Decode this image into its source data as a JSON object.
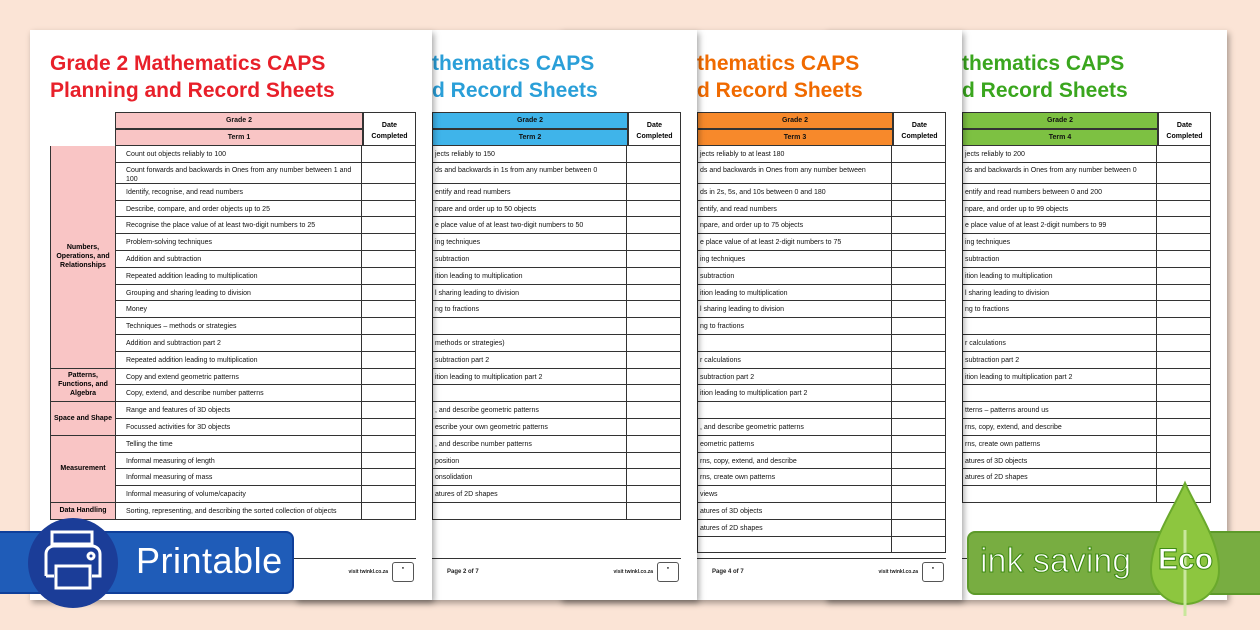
{
  "colors": {
    "background": "#fbe4d6",
    "printable_badge": "#1f5cb8",
    "eco_badge": "#78ad41"
  },
  "pages": [
    {
      "title": [
        "Grade 2 Mathematics CAPS",
        "Planning and Record Sheets"
      ],
      "title_color": "#e8202a",
      "header_color": "#f9c5c5",
      "grade": "Grade 2",
      "term": "Term 1",
      "date_header": "Date Completed",
      "page_label": "",
      "visit": "visit twinkl.co.za",
      "categories": [
        {
          "label": "Numbers, Operations, and Relationships",
          "rows": 13
        },
        {
          "label": "Patterns, Functions, and Algebra",
          "rows": 2
        },
        {
          "label": "Space and Shape",
          "rows": 2
        },
        {
          "label": "Measurement",
          "rows": 4
        },
        {
          "label": "Data Handling",
          "rows": 1
        }
      ],
      "rows": [
        "Count out objects reliably to 100",
        "Count forwards and backwards in Ones from any number between 1 and 100",
        "Identify, recognise, and read numbers",
        "Describe, compare, and order objects up to 25",
        "Recognise the place value of at least two-digit numbers to 25",
        "Problem-solving techniques",
        "Addition and subtraction",
        "Repeated addition leading to multiplication",
        "Grouping and sharing leading to division",
        "Money",
        "Techniques – methods or strategies",
        "Addition and subtraction part 2",
        "Repeated addition leading to multiplication",
        "Copy and extend geometric patterns",
        "Copy, extend, and describe number patterns",
        "Range and features of 3D objects",
        "Focussed activities for 3D objects",
        "Telling the time",
        "Informal measuring of length",
        "Informal measuring of mass",
        "Informal measuring of volume/capacity",
        "Sorting, representing, and describing the sorted collection of objects"
      ]
    },
    {
      "title": [
        "thematics CAPS",
        "d Record Sheets"
      ],
      "title_color": "#2a9fd8",
      "header_color": "#3fb4ea",
      "grade": "Grade 2",
      "term": "Term 2",
      "date_header": "Date Completed",
      "page_label": "Page 2 of 7",
      "visit": "visit twinkl.co.za",
      "rows": [
        "jects reliably to 150",
        "ds and backwards in 1s from any number between 0",
        "entify and read numbers",
        "npare and order up to 50 objects",
        "e place value of at least two-digit numbers to 50",
        "ing techniques",
        "subtraction",
        "ition leading to multiplication",
        "l sharing leading to division",
        "ng to fractions",
        "",
        "methods or strategies)",
        "subtraction part 2",
        "ition leading to multiplication part 2",
        "",
        ", and describe geometric patterns",
        "escribe your own geometric patterns",
        ", and describe number patterns",
        "position",
        "onsolidation",
        "atures of 2D shapes",
        ""
      ]
    },
    {
      "title": [
        "thematics CAPS",
        "d Record Sheets"
      ],
      "title_color": "#f06a00",
      "header_color": "#f7892b",
      "grade": "Grade 2",
      "term": "Term 3",
      "date_header": "Date Completed",
      "page_label": "Page 4 of 7",
      "visit": "visit twinkl.co.za",
      "rows": [
        "jects reliably to at least 180",
        "ds and backwards in Ones from any number between",
        "ds in 2s, 5s, and 10s between 0 and 180",
        "entify, and read numbers",
        "npare, and order up to 75 objects",
        "e place value of at least 2-digit numbers to 75",
        "ing techniques",
        "subtraction",
        "ition leading to multiplication",
        "l sharing leading to division",
        "ng to fractions",
        "",
        "r calculations",
        "subtraction part 2",
        "ition leading to multiplication part 2",
        "",
        ", and describe geometric patterns",
        "eometric patterns",
        "rns, copy, extend, and describe",
        "rns, create own patterns",
        "views",
        "atures of 3D objects",
        "atures of 2D shapes",
        ""
      ]
    },
    {
      "title": [
        "thematics CAPS",
        "d Record Sheets"
      ],
      "title_color": "#3aa61e",
      "header_color": "#7dc142",
      "grade": "Grade 2",
      "term": "Term 4",
      "date_header": "Date Completed",
      "page_label": "",
      "visit": "",
      "rows": [
        "jects reliably to 200",
        "ds and backwards in Ones from any number between 0",
        "entify and read numbers between 0 and 200",
        "npare, and order up to 99 objects",
        "e place value of at least 2-digit numbers to 99",
        "ing techniques",
        "subtraction",
        "ition leading to multiplication",
        "l sharing leading to division",
        "ng to fractions",
        "",
        "r calculations",
        "subtraction part 2",
        "ition leading to multiplication part 2",
        "",
        "tterns – patterns around us",
        "rns, copy, extend, and describe",
        "rns, create own patterns",
        "atures of 3D objects",
        "atures of 2D shapes",
        ""
      ]
    }
  ],
  "badges": {
    "printable": {
      "label": "Printable",
      "icon": "printer-icon"
    },
    "eco": {
      "label": "ink saving",
      "word": "Eco",
      "icon": "leaf-icon"
    }
  }
}
